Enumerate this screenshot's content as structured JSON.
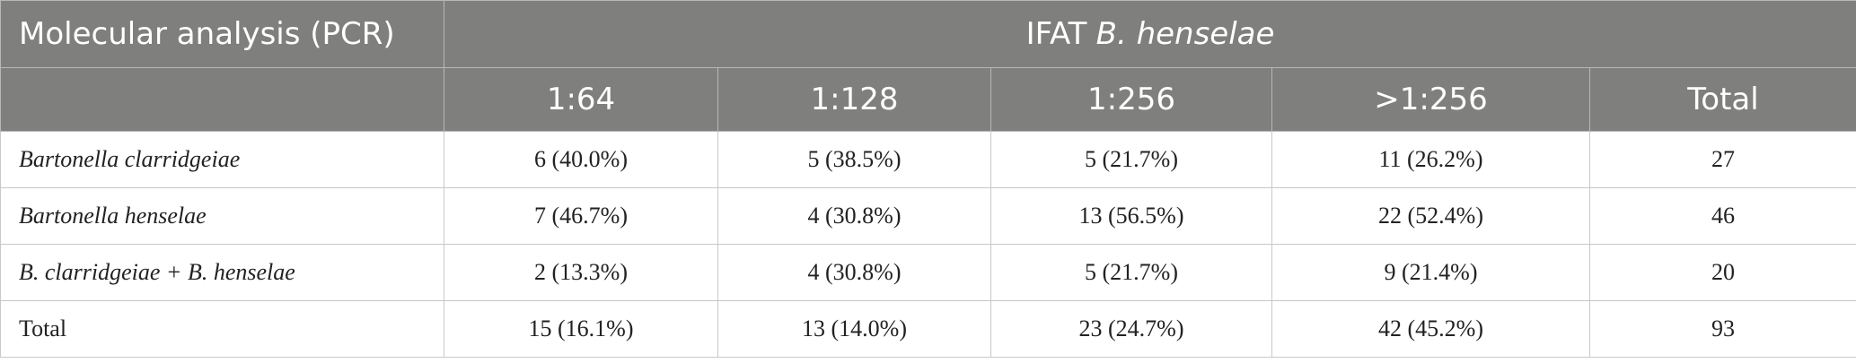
{
  "table": {
    "title_cell": "Molecular analysis (PCR)",
    "group": {
      "prefix": "IFAT",
      "italic": "B. henselae"
    },
    "columns": [
      "1:64",
      "1:128",
      "1:256",
      ">1:256",
      "Total"
    ],
    "rows": [
      [
        "Bartonella clarridgeiae",
        "6 (40.0%)",
        "5 (38.5%)",
        "5 (21.7%)",
        "11 (26.2%)",
        "27"
      ],
      [
        "Bartonella henselae",
        "7 (46.7%)",
        "4 (30.8%)",
        "13 (56.5%)",
        "22 (52.4%)",
        "46"
      ],
      [
        "B. clarridgeiae + B. henselae",
        "2 (13.3%)",
        "4 (30.8%)",
        "5 (21.7%)",
        "9 (21.4%)",
        "20"
      ],
      [
        "Total",
        "15 (16.1%)",
        "13 (14.0%)",
        "23 (24.7%)",
        "42 (45.2%)",
        "93"
      ]
    ]
  }
}
